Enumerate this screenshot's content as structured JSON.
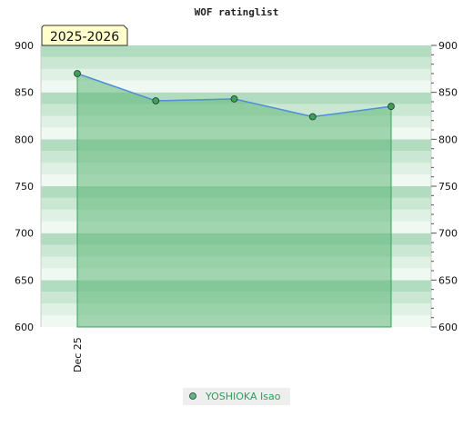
{
  "chart_data": {
    "type": "area",
    "title": "WOF ratinglist",
    "season_tag": "2025-2026",
    "x": [
      "Dec 25",
      "",
      "",
      "",
      ""
    ],
    "x_tick_labels": [
      "Dec 25"
    ],
    "series": [
      {
        "name": "YOSHIOKA Isao",
        "values": [
          870,
          841,
          843,
          824,
          835
        ]
      }
    ],
    "ylim": [
      600,
      900
    ],
    "y_ticks": [
      600,
      650,
      700,
      750,
      800,
      850,
      900
    ],
    "y_ticks_right": [
      600,
      650,
      700,
      750,
      800,
      850,
      900
    ],
    "grid": true,
    "legend": "bottom-center",
    "colors": {
      "line": "#4f8fd6",
      "fill": "#5fb878",
      "marker": "#3f9e5a",
      "band_dark": "#b2dcc0",
      "band_mid": "#c9e7d2",
      "band_light": "#dff1e5",
      "band_lightest": "#f0f8f2",
      "tag_bg": "#ffffcc"
    }
  }
}
